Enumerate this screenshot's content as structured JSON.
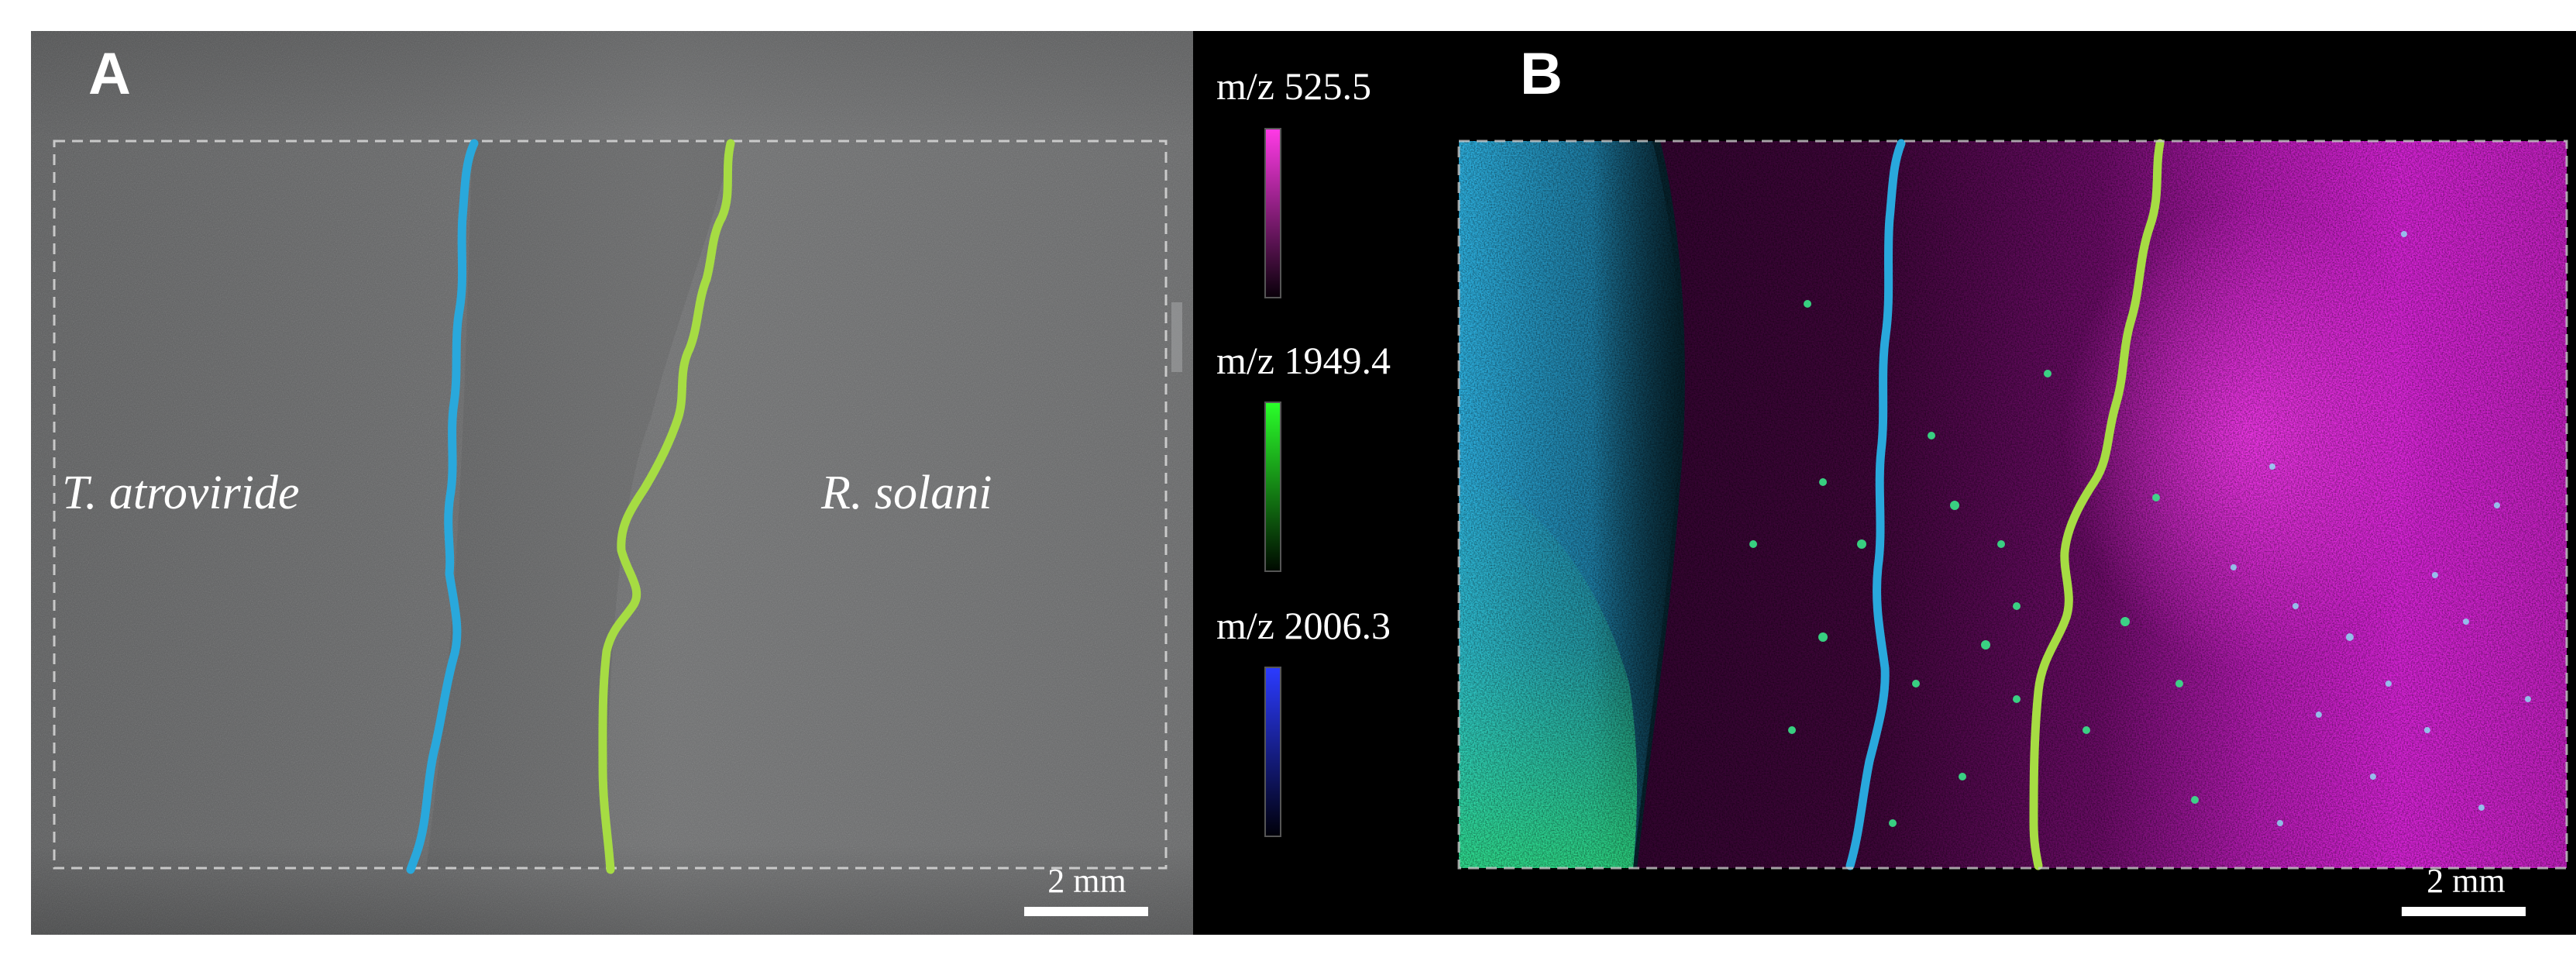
{
  "panel_a": {
    "letter": "A",
    "left_species": "T. atroviride",
    "right_species": "R. solani",
    "scale_bar": "2 mm",
    "boundary_colors": {
      "trichoderma_front": "#29a8dc",
      "rhizoctonia_front": "#a6dc43"
    }
  },
  "panel_b": {
    "letter": "B",
    "scale_bar": "2 mm",
    "channels": [
      {
        "label": "m/z 525.5",
        "color": "#ff3ae6"
      },
      {
        "label": "m/z 1949.4",
        "color": "#2aff2a"
      },
      {
        "label": "m/z 2006.3",
        "color": "#2b3bff"
      }
    ],
    "signal_colors": {
      "trichoderma": "#3fc8ff",
      "trichoderma_lower": "#32e6a0",
      "rhizoctonia": "#d21fd2",
      "interaction_zone": "#3a0536"
    }
  }
}
